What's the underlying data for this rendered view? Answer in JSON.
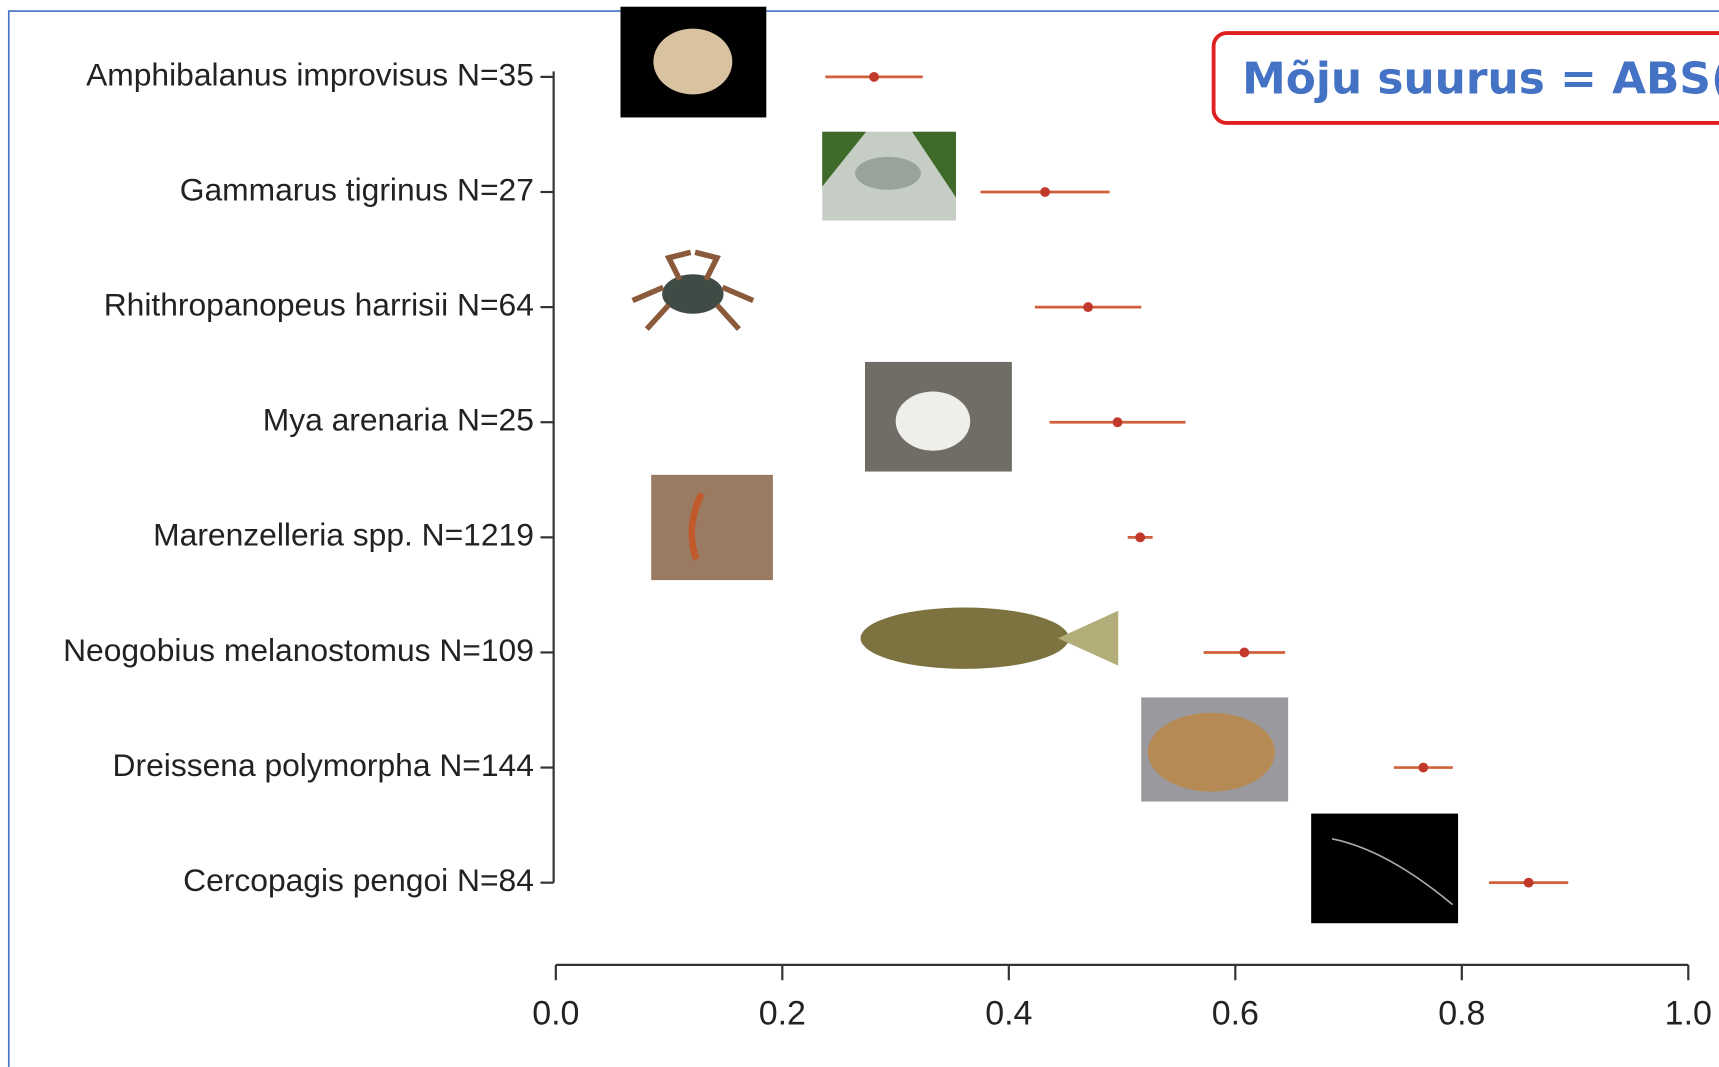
{
  "chart_data": {
    "type": "errorbar",
    "categories": [
      "Amphibalanus improvisus N=35",
      "Gammarus tigrinus N=27",
      "Rhithropanopeus harrisii N=64",
      "Mya arenaria N=25",
      "Marenzelleria spp. N=1219",
      "Neogobius melanostomus N=109",
      "Dreissena polymorpha N=144",
      "Cercopagis pengoi N=84"
    ],
    "values": [
      0.281,
      0.432,
      0.47,
      0.496,
      0.516,
      0.608,
      0.766,
      0.859
    ],
    "errors": [
      0.043,
      0.057,
      0.047,
      0.06,
      0.011,
      0.036,
      0.026,
      0.035
    ],
    "color": "#d0603c",
    "point_color": "#c0392b",
    "xlim": [
      0,
      1
    ],
    "xticks": [
      {
        "value": 0,
        "label": "0.0"
      },
      0.2,
      0.4,
      0.6,
      0.8,
      {
        "value": 1,
        "label": "1.0"
      }
    ],
    "annotation": "Mõju suurus = ABS((x-"
  }
}
